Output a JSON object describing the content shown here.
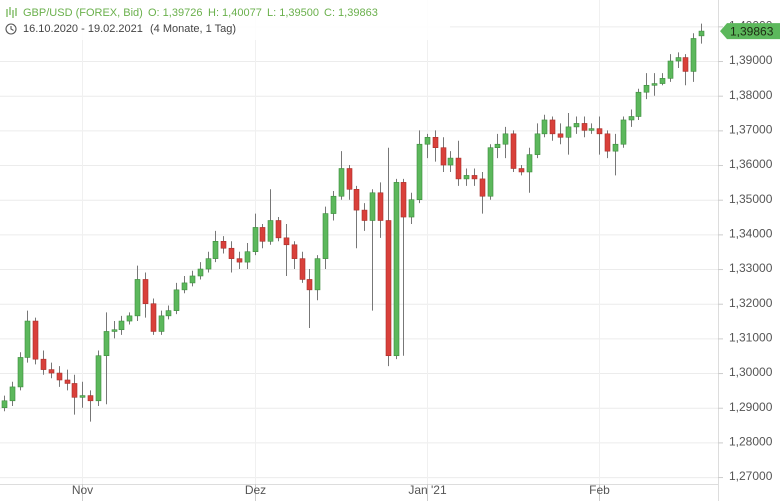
{
  "chart_data": {
    "type": "candlestick",
    "header": {
      "symbol": "GBP/USD (FOREX, Bid)",
      "quote": [
        "O: 1,39726",
        "H: 1,40077",
        "L: 1,39500",
        "C: 1,39863"
      ],
      "period": "16.10.2020 - 19.02.2021",
      "span": "(4 Monate, 1 Tag)"
    },
    "last_label": "1,39863",
    "up_color": "#5cb85c",
    "down_color": "#d9403a",
    "grid": true,
    "categories": [
      null,
      null,
      null,
      null,
      null,
      null,
      null,
      null,
      null,
      null,
      "Nov",
      null,
      null,
      null,
      null,
      null,
      null,
      null,
      null,
      null,
      null,
      null,
      null,
      null,
      null,
      null,
      null,
      null,
      null,
      null,
      null,
      null,
      "Dez",
      null,
      null,
      null,
      null,
      null,
      null,
      null,
      null,
      null,
      null,
      null,
      null,
      null,
      null,
      null,
      null,
      null,
      null,
      null,
      null,
      null,
      "Jan '21",
      null,
      null,
      null,
      null,
      null,
      null,
      null,
      null,
      null,
      null,
      null,
      null,
      null,
      null,
      null,
      null,
      null,
      null,
      null,
      null,
      null,
      "Feb",
      null,
      null,
      null,
      null,
      null,
      null,
      null,
      null,
      null,
      null,
      null,
      null,
      null
    ],
    "open": [
      1.29,
      1.292,
      1.296,
      1.3045,
      1.315,
      1.304,
      1.301,
      1.3,
      1.298,
      1.297,
      1.293,
      1.2935,
      1.292,
      1.305,
      1.312,
      1.3125,
      1.315,
      1.3165,
      1.327,
      1.32,
      1.312,
      1.3165,
      1.318,
      1.324,
      1.326,
      1.328,
      1.33,
      1.333,
      1.338,
      1.336,
      1.333,
      1.332,
      1.335,
      1.342,
      1.338,
      1.344,
      1.339,
      1.337,
      1.333,
      1.327,
      1.324,
      1.333,
      1.346,
      1.351,
      1.359,
      1.353,
      1.347,
      1.344,
      1.352,
      1.344,
      1.305,
      1.355,
      1.345,
      1.35,
      1.366,
      1.368,
      1.365,
      1.36,
      1.362,
      1.356,
      1.357,
      1.356,
      1.351,
      1.365,
      1.366,
      1.369,
      1.359,
      1.358,
      1.363,
      1.369,
      1.373,
      1.369,
      1.368,
      1.371,
      1.372,
      1.37,
      1.3705,
      1.369,
      1.364,
      1.366,
      1.373,
      1.374,
      1.381,
      1.383,
      1.3835,
      1.385,
      1.39,
      1.391,
      1.387,
      1.39726
    ],
    "high": [
      1.2935,
      1.2975,
      1.306,
      1.318,
      1.316,
      1.3065,
      1.303,
      1.302,
      1.301,
      1.2995,
      1.2975,
      1.295,
      1.3065,
      1.3175,
      1.315,
      1.3165,
      1.3175,
      1.331,
      1.329,
      1.3215,
      1.318,
      1.3195,
      1.326,
      1.328,
      1.3295,
      1.332,
      1.335,
      1.341,
      1.3395,
      1.338,
      1.335,
      1.3375,
      1.346,
      1.343,
      1.353,
      1.345,
      1.343,
      1.338,
      1.335,
      1.33,
      1.334,
      1.348,
      1.3525,
      1.364,
      1.36,
      1.354,
      1.349,
      1.353,
      1.355,
      1.365,
      1.356,
      1.356,
      1.352,
      1.37,
      1.369,
      1.37,
      1.368,
      1.364,
      1.367,
      1.359,
      1.359,
      1.358,
      1.366,
      1.369,
      1.371,
      1.37,
      1.36,
      1.365,
      1.372,
      1.3745,
      1.374,
      1.372,
      1.375,
      1.374,
      1.374,
      1.372,
      1.374,
      1.37,
      1.369,
      1.374,
      1.376,
      1.382,
      1.3865,
      1.3865,
      1.3865,
      1.392,
      1.3925,
      1.392,
      1.398,
      1.40077
    ],
    "low": [
      1.289,
      1.2905,
      1.295,
      1.303,
      1.3025,
      1.2995,
      1.2985,
      1.296,
      1.295,
      1.288,
      1.29,
      1.286,
      1.2905,
      1.291,
      1.31,
      1.311,
      1.314,
      1.315,
      1.316,
      1.311,
      1.311,
      1.3155,
      1.317,
      1.323,
      1.325,
      1.327,
      1.329,
      1.332,
      1.3345,
      1.329,
      1.33,
      1.33,
      1.334,
      1.336,
      1.337,
      1.338,
      1.328,
      1.33,
      1.326,
      1.313,
      1.321,
      1.33,
      1.344,
      1.35,
      1.35,
      1.336,
      1.341,
      1.318,
      1.339,
      1.302,
      1.304,
      1.305,
      1.343,
      1.349,
      1.362,
      1.361,
      1.358,
      1.358,
      1.354,
      1.354,
      1.354,
      1.346,
      1.35,
      1.362,
      1.362,
      1.358,
      1.357,
      1.352,
      1.362,
      1.368,
      1.367,
      1.366,
      1.363,
      1.369,
      1.368,
      1.369,
      1.363,
      1.362,
      1.357,
      1.365,
      1.371,
      1.373,
      1.379,
      1.38,
      1.383,
      1.384,
      1.388,
      1.383,
      1.384,
      1.395
    ],
    "close": [
      1.292,
      1.296,
      1.3045,
      1.315,
      1.304,
      1.301,
      1.3,
      1.298,
      1.297,
      1.293,
      1.2935,
      1.292,
      1.305,
      1.312,
      1.3125,
      1.315,
      1.3165,
      1.327,
      1.32,
      1.312,
      1.3165,
      1.318,
      1.324,
      1.326,
      1.328,
      1.33,
      1.333,
      1.338,
      1.336,
      1.333,
      1.332,
      1.335,
      1.342,
      1.338,
      1.344,
      1.339,
      1.337,
      1.333,
      1.327,
      1.324,
      1.333,
      1.346,
      1.351,
      1.359,
      1.353,
      1.347,
      1.344,
      1.352,
      1.344,
      1.305,
      1.355,
      1.345,
      1.35,
      1.366,
      1.368,
      1.365,
      1.36,
      1.362,
      1.356,
      1.357,
      1.356,
      1.351,
      1.365,
      1.366,
      1.369,
      1.359,
      1.358,
      1.363,
      1.369,
      1.373,
      1.369,
      1.368,
      1.371,
      1.372,
      1.37,
      1.3705,
      1.369,
      1.364,
      1.366,
      1.373,
      1.374,
      1.381,
      1.383,
      1.3835,
      1.385,
      1.39,
      1.391,
      1.387,
      1.3965,
      1.39863
    ],
    "ylim": [
      1.268,
      1.4076
    ],
    "yticks": [
      {
        "value": 1.27,
        "label": "1,27000"
      },
      {
        "value": 1.28,
        "label": "1,28000"
      },
      {
        "value": 1.29,
        "label": "1,29000"
      },
      {
        "value": 1.3,
        "label": "1,30000"
      },
      {
        "value": 1.31,
        "label": "1,31000"
      },
      {
        "value": 1.32,
        "label": "1,32000"
      },
      {
        "value": 1.33,
        "label": "1,33000"
      },
      {
        "value": 1.34,
        "label": "1,34000"
      },
      {
        "value": 1.35,
        "label": "1,35000"
      },
      {
        "value": 1.36,
        "label": "1,36000"
      },
      {
        "value": 1.37,
        "label": "1,37000"
      },
      {
        "value": 1.38,
        "label": "1,38000"
      },
      {
        "value": 1.39,
        "label": "1,39000"
      },
      {
        "value": 1.4,
        "label": "1,40000"
      }
    ]
  }
}
